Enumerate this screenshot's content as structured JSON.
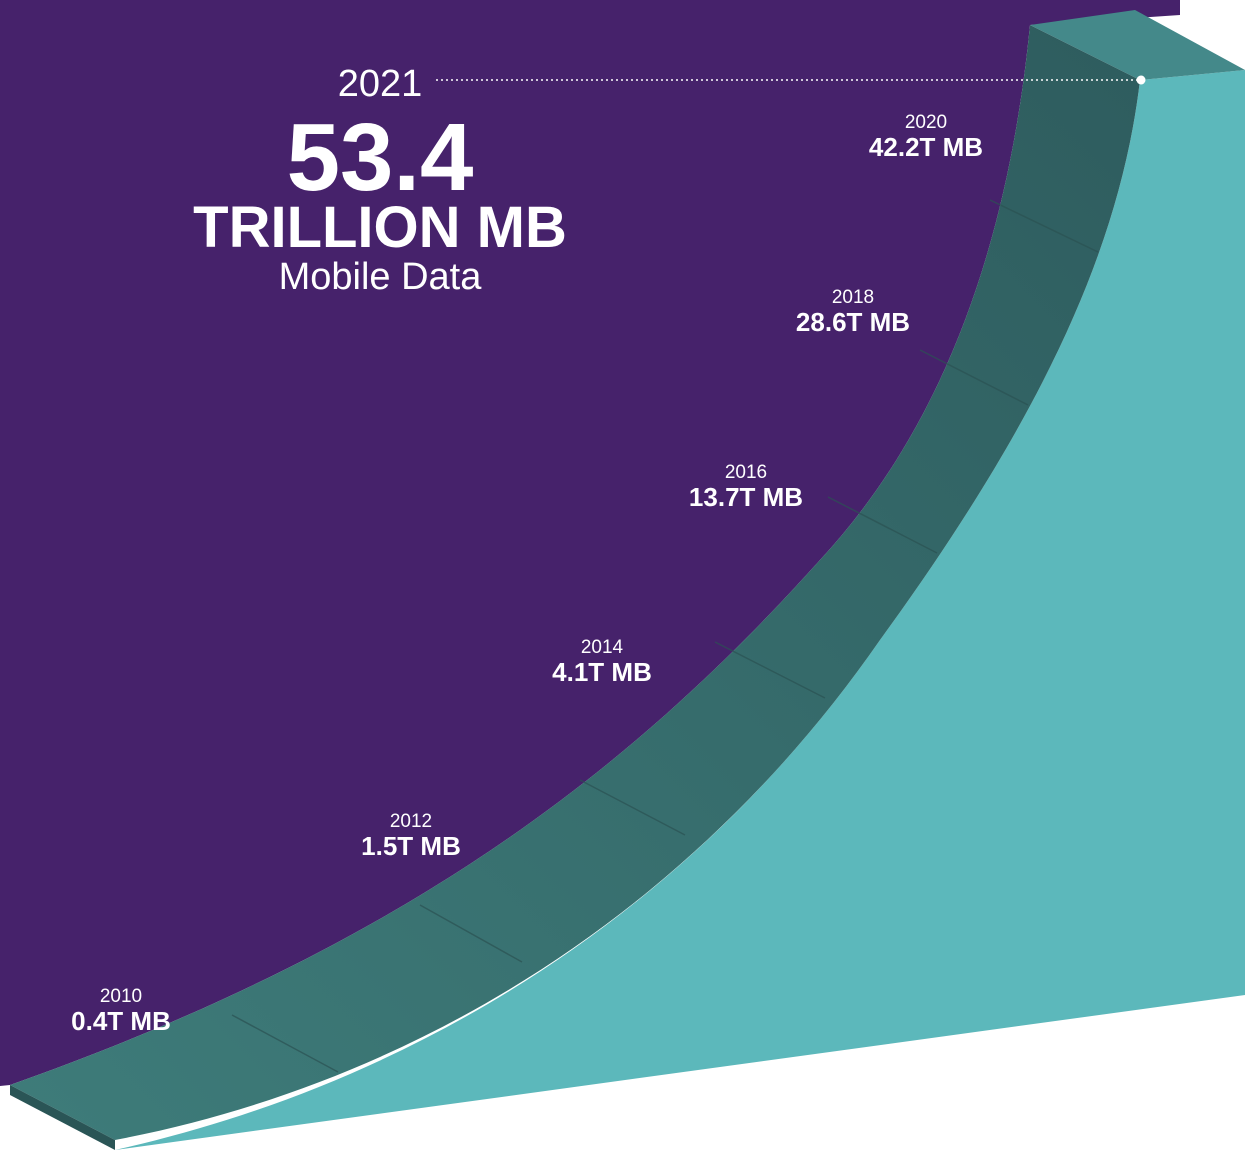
{
  "headline": {
    "year": "2021",
    "value": "53.4",
    "unit": "TRILLION MB",
    "subtitle": "Mobile Data"
  },
  "milestones": [
    {
      "year": "2020",
      "label": "42.2T MB"
    },
    {
      "year": "2018",
      "label": "28.6T MB"
    },
    {
      "year": "2016",
      "label": "13.7T MB"
    },
    {
      "year": "2014",
      "label": "4.1T MB"
    },
    {
      "year": "2012",
      "label": "1.5T MB"
    },
    {
      "year": "2010",
      "label": "0.4T MB"
    }
  ]
}
